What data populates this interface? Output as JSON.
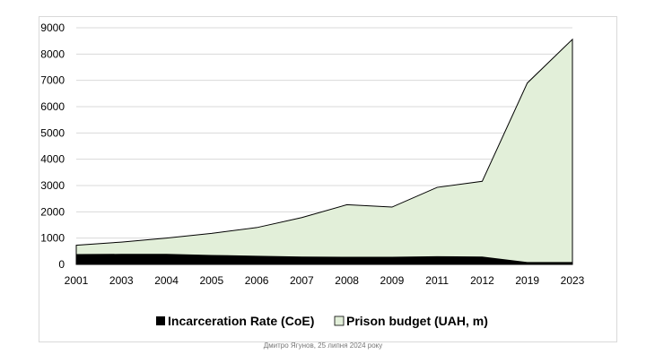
{
  "chart_data": {
    "type": "area",
    "title": "",
    "xlabel": "",
    "ylabel": "",
    "categories": [
      "2001",
      "2003",
      "2004",
      "2005",
      "2006",
      "2007",
      "2008",
      "2009",
      "2011",
      "2012",
      "2019",
      "2023"
    ],
    "ylim": [
      0,
      9000
    ],
    "yticks": [
      0,
      1000,
      2000,
      3000,
      4000,
      5000,
      6000,
      7000,
      8000,
      9000
    ],
    "grid": true,
    "legend_position": "bottom",
    "series": [
      {
        "name": "Prison budget (UAH, m)",
        "color": "#e2efd9",
        "values": [
          730,
          850,
          1000,
          1180,
          1400,
          1780,
          2270,
          2180,
          2930,
          3160,
          6900,
          8560
        ]
      },
      {
        "name": "Incarceration Rate (CoE)",
        "color": "#000000",
        "values": [
          390,
          400,
          400,
          360,
          330,
          300,
          290,
          290,
          310,
          300,
          90,
          90
        ]
      }
    ]
  },
  "caption": "Дмитро Ягунов, 25 липня 2024 року"
}
